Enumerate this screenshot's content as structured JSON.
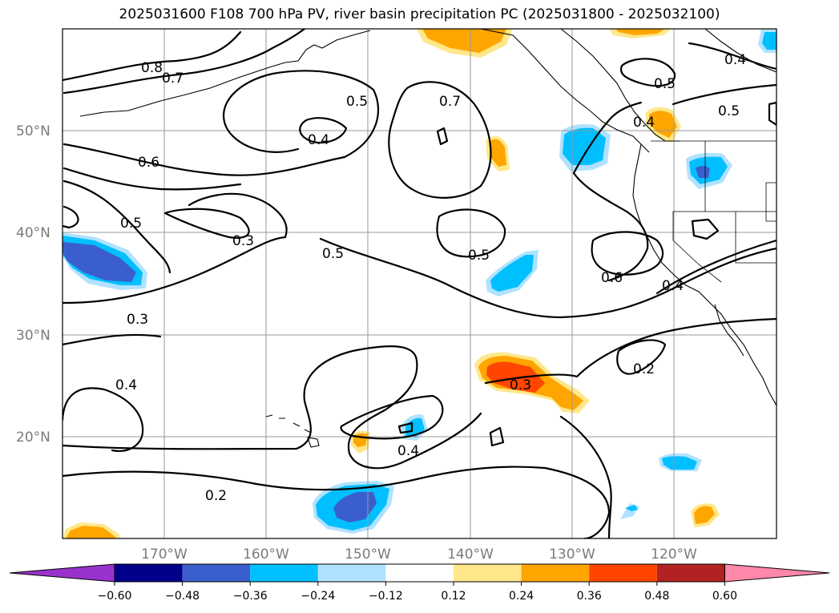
{
  "title": "2025031600 F108 700 hPa PV, river basin precipitation PC (2025031800 - 2025032100)",
  "map": {
    "lat_labels": [
      "50°N",
      "40°N",
      "30°N",
      "20°N"
    ],
    "lon_labels": [
      "170°W",
      "160°W",
      "150°W",
      "140°W",
      "130°W",
      "120°W"
    ],
    "contour_labels": [
      "0.8",
      "0.7",
      "0.5",
      "0.4",
      "0.7",
      "0.6",
      "0.5",
      "0.3",
      "0.5",
      "0.5",
      "0.6",
      "0.4",
      "0.4",
      "0.5",
      "0.5",
      "0.4",
      "0.3",
      "0.4",
      "0.3",
      "0.2",
      "0.4",
      "0.2"
    ]
  },
  "colorbar": {
    "ticks": [
      "−0.60",
      "−0.48",
      "−0.36",
      "−0.24",
      "−0.12",
      "0.12",
      "0.24",
      "0.36",
      "0.48",
      "0.60"
    ],
    "colors": [
      "#9932CC",
      "#00008B",
      "#3A5FCD",
      "#00BFFF",
      "#B0E2FF",
      "#FFFFFF",
      "#FFE78A",
      "#FFA500",
      "#FF4500",
      "#B22222",
      "#FF88AA"
    ]
  },
  "colors": {
    "pos_light": "#FFE78A",
    "pos_mid": "#FFA500",
    "pos_strong": "#FF4500",
    "neg_light": "#B0E2FF",
    "neg_mid": "#00BFFF",
    "neg_strong": "#3A5FCD",
    "neg_xstrong": "#5B2FC0",
    "grid": "#9a9a9a"
  }
}
